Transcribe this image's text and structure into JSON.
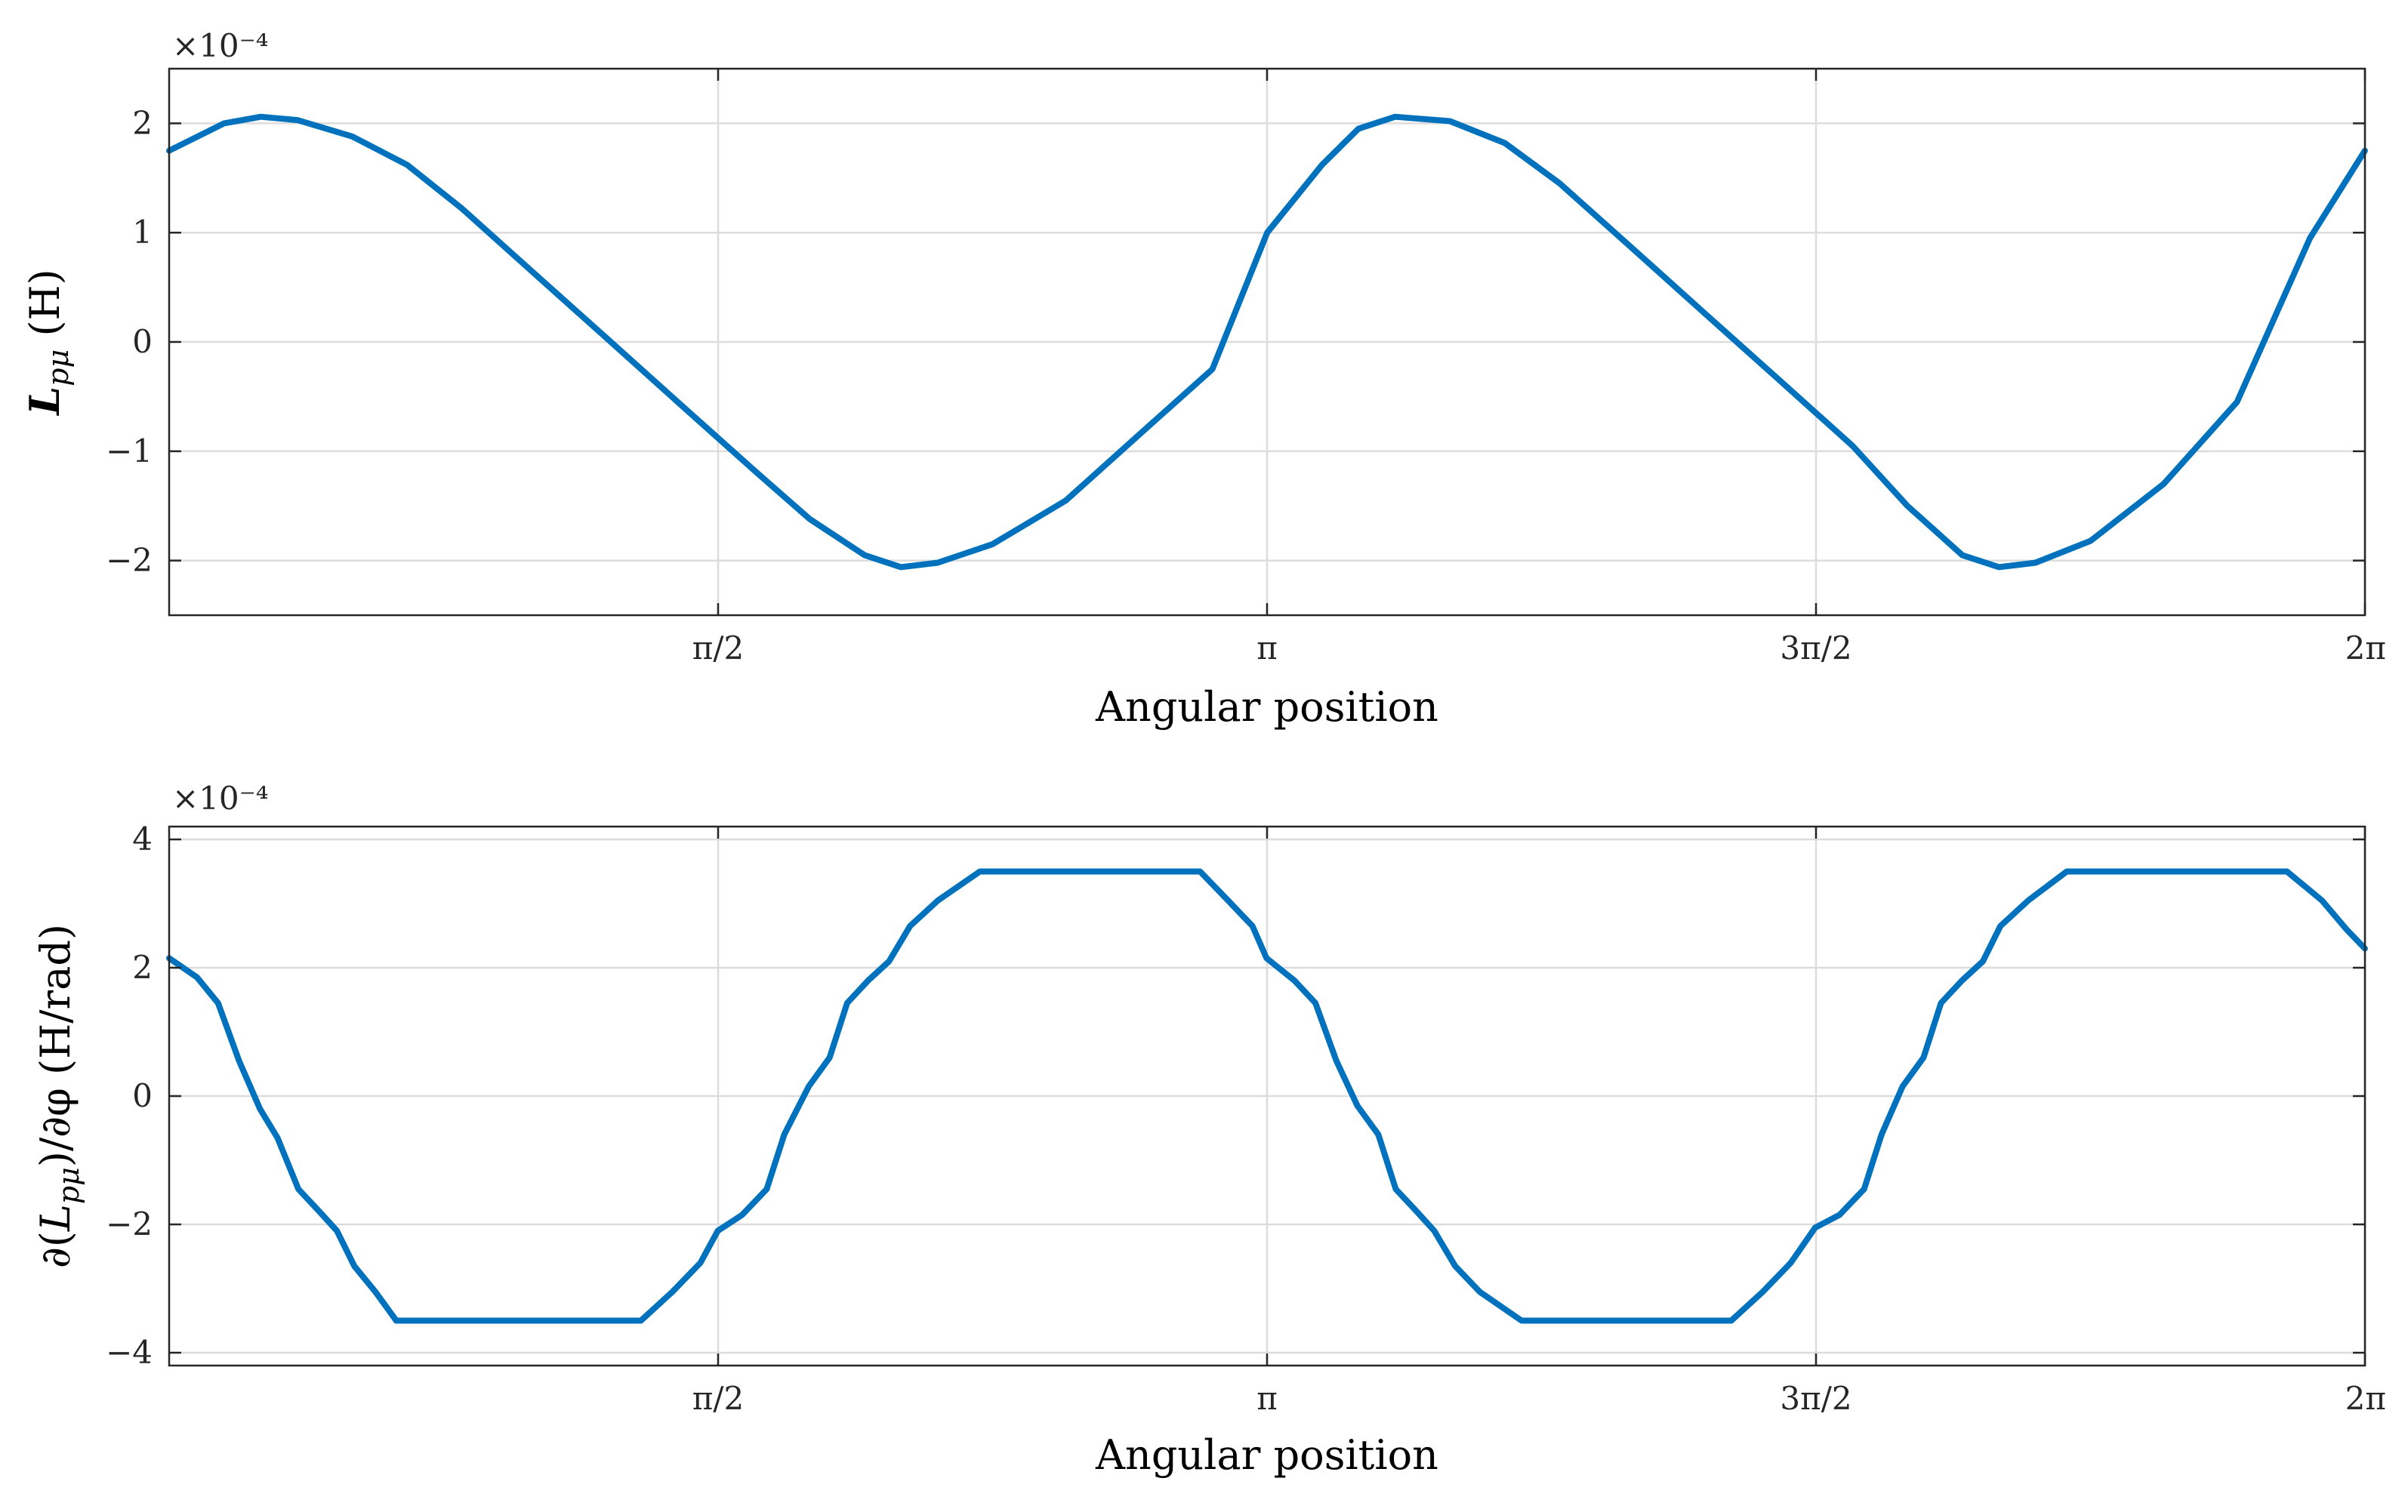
{
  "chart_data": [
    {
      "type": "line",
      "xlabel": "Angular position",
      "ylabel": "L_pμ (H)",
      "ylabel_parts": {
        "symbol": "L",
        "subscript": "pμ",
        "unit": " (H)"
      },
      "y_exponent_label": "×10⁻⁴",
      "xlim": [
        0,
        6.2832
      ],
      "ylim": [
        -2.5,
        2.5
      ],
      "grid": true,
      "color": "#0072bd",
      "x_ticks": [
        {
          "value": 1.5708,
          "label": "π/2"
        },
        {
          "value": 3.1416,
          "label": "π"
        },
        {
          "value": 4.7124,
          "label": "3π/2"
        },
        {
          "value": 6.2832,
          "label": "2π"
        }
      ],
      "y_ticks": [
        {
          "value": -2,
          "label": "−2"
        },
        {
          "value": -1,
          "label": "−1"
        },
        {
          "value": 0,
          "label": "0"
        },
        {
          "value": 1,
          "label": "1"
        },
        {
          "value": 2,
          "label": "2"
        }
      ],
      "series": [
        {
          "x": [
            0,
            0.157,
            0.262,
            0.367,
            0.524,
            0.681,
            0.838,
            1.047,
            1.257,
            1.466,
            1.676,
            1.833,
            1.99,
            2.094,
            2.199,
            2.356,
            2.566,
            2.775,
            2.985,
            3.142,
            3.299,
            3.403,
            3.508,
            3.665,
            3.822,
            3.979,
            4.189,
            4.398,
            4.608,
            4.817,
            4.974,
            5.131,
            5.236,
            5.34,
            5.498,
            5.707,
            5.917,
            6.126,
            6.283
          ],
          "y": [
            1.75,
            2.0,
            2.06,
            2.03,
            1.88,
            1.62,
            1.22,
            0.62,
            0.02,
            -0.58,
            -1.18,
            -1.62,
            -1.95,
            -2.06,
            -2.02,
            -1.85,
            -1.45,
            -0.85,
            -0.25,
            1.0,
            1.62,
            1.95,
            2.06,
            2.02,
            1.82,
            1.45,
            0.85,
            0.25,
            -0.35,
            -0.95,
            -1.5,
            -1.95,
            -2.06,
            -2.02,
            -1.82,
            -1.3,
            -0.55,
            0.95,
            1.75
          ]
        }
      ]
    },
    {
      "type": "line",
      "xlabel": "Angular position",
      "ylabel": "∂(L_pμ)/∂φ (H/rad)",
      "ylabel_parts": {
        "prefix": "∂(",
        "symbol": "L",
        "subscript": "pμ",
        "suffix": ")/∂φ (H/rad)"
      },
      "y_exponent_label": "×10⁻⁴",
      "xlim": [
        0,
        6.2832
      ],
      "ylim": [
        -4.2,
        4.2
      ],
      "grid": true,
      "color": "#0072bd",
      "x_ticks": [
        {
          "value": 1.5708,
          "label": "π/2"
        },
        {
          "value": 3.1416,
          "label": "π"
        },
        {
          "value": 4.7124,
          "label": "3π/2"
        },
        {
          "value": 6.2832,
          "label": "2π"
        }
      ],
      "y_ticks": [
        {
          "value": -4,
          "label": "−4"
        },
        {
          "value": -2,
          "label": "−2"
        },
        {
          "value": 0,
          "label": "0"
        },
        {
          "value": 2,
          "label": "2"
        },
        {
          "value": 4,
          "label": "4"
        }
      ],
      "series": [
        {
          "x": [
            0,
            0.08,
            0.14,
            0.2,
            0.26,
            0.31,
            0.37,
            0.43,
            0.48,
            0.53,
            0.59,
            0.65,
            0.72,
            1.35,
            1.44,
            1.52,
            1.57,
            1.64,
            1.71,
            1.76,
            1.83,
            1.89,
            1.94,
            2.0,
            2.06,
            2.12,
            2.2,
            2.32,
            2.95,
            3.03,
            3.1,
            3.14,
            3.22,
            3.28,
            3.34,
            3.4,
            3.46,
            3.51,
            3.57,
            3.62,
            3.68,
            3.75,
            3.87,
            4.47,
            4.56,
            4.64,
            4.71,
            4.78,
            4.85,
            4.9,
            4.96,
            5.02,
            5.07,
            5.13,
            5.19,
            5.24,
            5.32,
            5.43,
            6.06,
            6.16,
            6.23,
            6.283
          ],
          "y": [
            2.15,
            1.85,
            1.45,
            0.55,
            -0.2,
            -0.65,
            -1.45,
            -1.8,
            -2.1,
            -2.65,
            -3.05,
            -3.5,
            -3.5,
            -3.5,
            -3.05,
            -2.6,
            -2.1,
            -1.85,
            -1.45,
            -0.6,
            0.15,
            0.6,
            1.45,
            1.8,
            2.1,
            2.65,
            3.05,
            3.5,
            3.5,
            3.05,
            2.65,
            2.15,
            1.8,
            1.45,
            0.55,
            -0.15,
            -0.6,
            -1.45,
            -1.8,
            -2.1,
            -2.65,
            -3.05,
            -3.5,
            -3.5,
            -3.05,
            -2.6,
            -2.05,
            -1.85,
            -1.45,
            -0.6,
            0.15,
            0.6,
            1.45,
            1.8,
            2.1,
            2.65,
            3.05,
            3.5,
            3.5,
            3.05,
            2.6,
            2.3
          ]
        }
      ]
    }
  ]
}
